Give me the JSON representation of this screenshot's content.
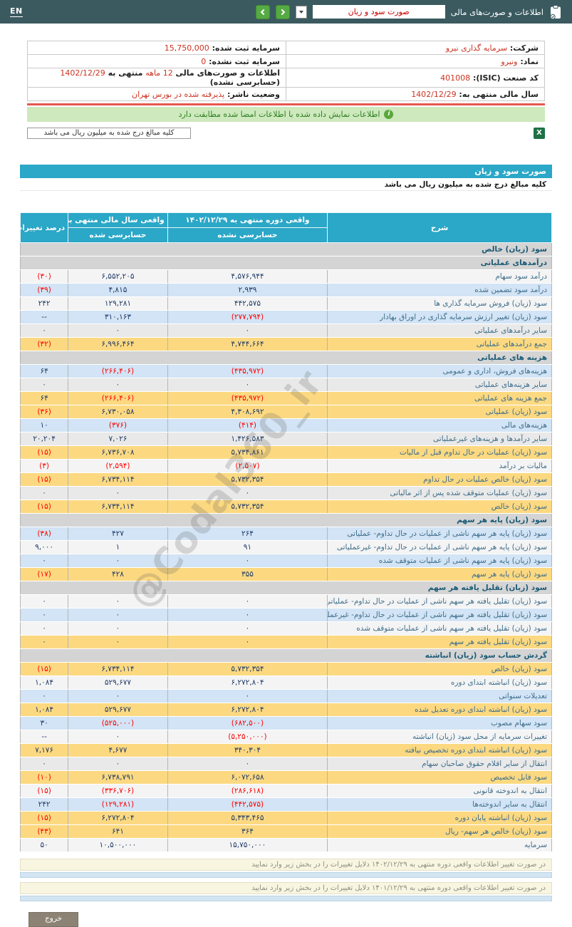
{
  "navbar": {
    "en_label": "EN",
    "section_label": "اطلاعات و صورت‌های مالی",
    "report_selected": "صورت سود و زیان"
  },
  "company_info": {
    "rows": [
      {
        "right": [
          {
            "t": "شرکت: ",
            "b": true
          },
          {
            "t": "سرمایه گذاری نیرو",
            "red": true
          }
        ],
        "left": [
          {
            "t": "سرمایه ثبت شده: ",
            "b": true
          },
          {
            "t": "15,750,000",
            "red": true
          }
        ]
      },
      {
        "right": [
          {
            "t": "نماد: ",
            "b": true
          },
          {
            "t": "ونیرو",
            "red": true
          }
        ],
        "left": [
          {
            "t": "سرمایه ثبت نشده: ",
            "b": true
          },
          {
            "t": "0",
            "red": true
          }
        ]
      },
      {
        "right": [
          {
            "t": "کد صنعت (ISIC): ",
            "b": true
          },
          {
            "t": "401008",
            "red": true
          }
        ],
        "left": [
          {
            "t": "اطلاعات و صورت‌های مالی ",
            "b": true
          },
          {
            "t": "12 ماهه",
            "red": true
          },
          {
            "t": " منتهی به ",
            "b": true
          },
          {
            "t": "1402/12/29",
            "red": true
          },
          {
            "t": " (حسابرسی نشده)",
            "b": true
          }
        ]
      },
      {
        "right": [
          {
            "t": "سال مالی منتهی به: ",
            "b": true
          },
          {
            "t": "1402/12/29",
            "red": true
          }
        ],
        "left": [
          {
            "t": "وضعیت ناشر: ",
            "b": true
          },
          {
            "t": "پذیرفته شده در بورس تهران",
            "red": true
          }
        ]
      }
    ]
  },
  "alert": {
    "text": "اطلاعات نمایش داده شده با اطلاعات امضا شده مطابقت دارد",
    "icon_glyph": "i"
  },
  "amounts_note_box": "کلیه مبالغ درج شده به میلیون ریال می باشد",
  "excel_icon_glyph": "X",
  "section_title": "صورت سود و زیان",
  "units_note": "کلیه مبالغ درج شده به میلیون ریال می باشد",
  "statement": {
    "headers": {
      "description": "شرح",
      "period_current": "واقعی دوره منتهی به ۱۴۰۲/۱۲/۲۹",
      "period_current_sub": "حسابرسی نشده",
      "period_prior": "واقعی سال مالی منتهی به ۱۴۰۱/۱۲/۲۹",
      "period_prior_sub": "حسابرسی شده",
      "change": "درصد تغییرات"
    },
    "rows": [
      {
        "type": "section",
        "label": "سود (زیان) خالص"
      },
      {
        "type": "section",
        "label": "درآمدهای عملیاتی"
      },
      {
        "type": "data",
        "style": "plain",
        "label": "درآمد سود سهام",
        "current": "۴,۵۷۶,۹۴۴",
        "prior": "۶,۵۵۲,۲۰۵",
        "change": "(۳۰)"
      },
      {
        "type": "data",
        "style": "blue",
        "label": "درآمد سود تضمین شده",
        "current": "۲,۹۳۹",
        "prior": "۴,۸۱۵",
        "change": "(۳۹)"
      },
      {
        "type": "data",
        "style": "plain",
        "label": "سود (زیان) فروش سرمایه گذاری ها",
        "current": "۴۴۲,۵۷۵",
        "prior": "۱۲۹,۲۸۱",
        "change": "۲۴۲"
      },
      {
        "type": "data",
        "style": "blue",
        "label": "سود (زیان) تغییر ارزش سرمایه گذاری در اوراق بهادار",
        "current": "(۲۷۷,۷۹۴)",
        "prior": "۳۱۰,۱۶۳",
        "change": "--"
      },
      {
        "type": "data",
        "style": "alt",
        "label": "سایر درآمدهای عملیاتی",
        "current": "۰",
        "prior": "۰",
        "change": "۰"
      },
      {
        "type": "data",
        "style": "yellow",
        "label": "جمع درآمدهای عملیاتی",
        "current": "۴,۷۴۴,۶۶۴",
        "prior": "۶,۹۹۶,۴۶۴",
        "change": "(۳۲)"
      },
      {
        "type": "section",
        "label": "هزینه های عملیاتی"
      },
      {
        "type": "data",
        "style": "blue",
        "label": "هزینه‌های فروش، اداری و عمومی",
        "current": "(۴۳۵,۹۷۲)",
        "prior": "(۲۶۶,۴۰۶)",
        "change": "۶۴"
      },
      {
        "type": "data",
        "style": "alt",
        "label": "سایر هزینه‌های عملیاتی",
        "current": "۰",
        "prior": "۰",
        "change": "۰"
      },
      {
        "type": "data",
        "style": "yellow",
        "label": "جمع هزینه های عملیاتی",
        "current": "(۴۳۵,۹۷۲)",
        "prior": "(۲۶۶,۴۰۶)",
        "change": "۶۴"
      },
      {
        "type": "data",
        "style": "yellow",
        "label": "سود (زیان) عملیاتی",
        "current": "۴,۳۰۸,۶۹۲",
        "prior": "۶,۷۳۰,۰۵۸",
        "change": "(۳۶)"
      },
      {
        "type": "data",
        "style": "blue",
        "label": "هزینه‌های مالی",
        "current": "(۴۱۴)",
        "prior": "(۳۷۶)",
        "change": "۱۰"
      },
      {
        "type": "data",
        "style": "alt",
        "label": "سایر درآمدها و هزینه‌های غیرعملیاتی",
        "current": "۱,۴۲۶,۵۸۳",
        "prior": "۷,۰۲۶",
        "change": "۲۰,۲۰۴"
      },
      {
        "type": "data",
        "style": "yellow",
        "label": "سود (زیان) عملیات در حال تداوم قبل از مالیات",
        "current": "۵,۷۳۴,۸۶۱",
        "prior": "۶,۷۳۶,۷۰۸",
        "change": "(۱۵)"
      },
      {
        "type": "data",
        "style": "plain",
        "label": "مالیات بر درآمد",
        "current": "(۲,۵۰۷)",
        "prior": "(۲,۵۹۴)",
        "change": "(۳)"
      },
      {
        "type": "data",
        "style": "yellow",
        "label": "سود (زیان) خالص عملیات در حال تداوم",
        "current": "۵,۷۳۲,۳۵۴",
        "prior": "۶,۷۳۴,۱۱۴",
        "change": "(۱۵)"
      },
      {
        "type": "data",
        "style": "alt",
        "label": "سود (زیان) عملیات متوقف شده پس از اثر مالیاتی",
        "current": "۰",
        "prior": "۰",
        "change": "۰"
      },
      {
        "type": "data",
        "style": "yellow",
        "label": "سود (زیان) خالص",
        "current": "۵,۷۳۲,۳۵۴",
        "prior": "۶,۷۳۴,۱۱۴",
        "change": "(۱۵)"
      },
      {
        "type": "section",
        "label": "سود (زیان) پایه هر سهم"
      },
      {
        "type": "data",
        "style": "blue",
        "label": "سود (زیان) پایه هر سهم ناشی از عملیات در حال تداوم- عملیاتی",
        "current": "۲۶۴",
        "prior": "۴۲۷",
        "change": "(۳۸)"
      },
      {
        "type": "data",
        "style": "plain",
        "label": "سود (زیان) پایه هر سهم ناشی از عملیات در حال تداوم- غیرعملیاتی",
        "current": "۹۱",
        "prior": "۱",
        "change": "۹,۰۰۰"
      },
      {
        "type": "data",
        "style": "blue",
        "label": "سود (زیان) پایه هر سهم ناشی از عملیات متوقف شده",
        "current": "۰",
        "prior": "۰",
        "change": "۰"
      },
      {
        "type": "data",
        "style": "yellow",
        "label": "سود (زیان) پایه هر سهم",
        "current": "۳۵۵",
        "prior": "۴۲۸",
        "change": "(۱۷)"
      },
      {
        "type": "section",
        "label": "سود (زیان) تقلیل یافته هر سهم"
      },
      {
        "type": "data",
        "style": "plain",
        "label": "سود (زیان) تقلیل یافته هر سهم ناشی از عملیات در حال تداوم- عملیاتی",
        "current": "۰",
        "prior": "۰",
        "change": "۰"
      },
      {
        "type": "data",
        "style": "blue",
        "label": "سود (زیان) تقلیل یافته هر سهم ناشی از عملیات در حال تداوم- غیرعملیاتی",
        "current": "۰",
        "prior": "۰",
        "change": "۰"
      },
      {
        "type": "data",
        "style": "plain",
        "label": "سود (زیان) تقلیل یافته هر سهم ناشی از عملیات متوقف شده",
        "current": "۰",
        "prior": "۰",
        "change": "۰"
      },
      {
        "type": "data",
        "style": "yellow",
        "label": "سود (زیان) تقلیل یافته هر سهم",
        "current": "۰",
        "prior": "۰",
        "change": "۰"
      },
      {
        "type": "section",
        "label": "گردش حساب سود (زیان) انباشته"
      },
      {
        "type": "data",
        "style": "yellow",
        "label": "سود (زیان) خالص",
        "current": "۵,۷۳۲,۳۵۴",
        "prior": "۶,۷۳۴,۱۱۴",
        "change": "(۱۵)"
      },
      {
        "type": "data",
        "style": "plain",
        "label": "سود (زیان) انباشته ابتدای دوره",
        "current": "۶,۲۷۲,۸۰۴",
        "prior": "۵۲۹,۶۷۷",
        "change": "۱,۰۸۴"
      },
      {
        "type": "data",
        "style": "blue",
        "label": "تعدیلات سنواتی",
        "current": "۰",
        "prior": "۰",
        "change": "۰"
      },
      {
        "type": "data",
        "style": "yellow",
        "label": "سود (زیان) انباشته ابتدای دوره تعدیل شده",
        "current": "۶,۲۷۲,۸۰۴",
        "prior": "۵۲۹,۶۷۷",
        "change": "۱,۰۸۴"
      },
      {
        "type": "data",
        "style": "blue",
        "label": "سود سهام مصوب",
        "current": "(۶۸۲,۵۰۰)",
        "prior": "(۵۲۵,۰۰۰)",
        "change": "۳۰"
      },
      {
        "type": "data",
        "style": "plain",
        "label": "تغییرات سرمایه از محل سود (زیان) انباشته",
        "current": "(۵,۲۵۰,۰۰۰)",
        "prior": "۰",
        "change": "--"
      },
      {
        "type": "data",
        "style": "yellow",
        "label": "سود (زیان) انباشته ابتدای دوره تخصیص نیافته",
        "current": "۳۴۰,۳۰۴",
        "prior": "۴,۶۷۷",
        "change": "۷,۱۷۶"
      },
      {
        "type": "data",
        "style": "alt",
        "label": "انتقال از سایر اقلام حقوق صاحبان سهام",
        "current": "۰",
        "prior": "۰",
        "change": "۰"
      },
      {
        "type": "data",
        "style": "yellow",
        "label": "سود قابل تخصیص",
        "current": "۶,۰۷۲,۶۵۸",
        "prior": "۶,۷۳۸,۷۹۱",
        "change": "(۱۰)"
      },
      {
        "type": "data",
        "style": "plain",
        "label": "انتقال به اندوخته قانونی",
        "current": "(۲۸۶,۶۱۸)",
        "prior": "(۳۳۶,۷۰۶)",
        "change": "(۱۵)"
      },
      {
        "type": "data",
        "style": "blue",
        "label": "انتقال به سایر اندوخته‌ها",
        "current": "(۴۴۲,۵۷۵)",
        "prior": "(۱۲۹,۲۸۱)",
        "change": "۲۴۲"
      },
      {
        "type": "data",
        "style": "yellow",
        "label": "سود (زیان) انباشته پایان دوره",
        "current": "۵,۳۴۳,۴۶۵",
        "prior": "۶,۲۷۲,۸۰۴",
        "change": "(۱۵)"
      },
      {
        "type": "data",
        "style": "yellow",
        "label": "سود (زیان) خالص هر سهم- ریال",
        "current": "۳۶۴",
        "prior": "۶۴۱",
        "change": "(۴۳)"
      },
      {
        "type": "data",
        "style": "plain",
        "label": "سرمایه",
        "current": "۱۵,۷۵۰,۰۰۰",
        "prior": "۱۰,۵۰۰,۰۰۰",
        "change": "۵۰"
      }
    ]
  },
  "watermark": "@Codal360_ir",
  "notes": [
    {
      "text": "در صورت تغییر اطلاعات واقعی دوره منتهی به ۱۴۰۲/۱۲/۲۹ دلایل تغییرات را در بخش زیر وارد نمایید"
    },
    {
      "text": "در صورت تغییر اطلاعات واقعی دوره منتهی به ۱۴۰۱/۱۲/۲۹ دلایل تغییرات را در بخش زیر وارد نمایید"
    }
  ],
  "exit_button": "خروج",
  "colors": {
    "navbar_bg": "#3a5a60",
    "header_teal": "#2ba7c7",
    "row_yellow": "#fcd981",
    "row_blue": "#d2e4f5",
    "negative_red": "#ff0000",
    "value_navy": "#1f3a67",
    "alert_green_bg": "#cde9bd",
    "alert_green_text": "#2f7d21",
    "divider_red": "#e8564e",
    "excel_green": "#1e7145",
    "exit_button_bg": "#8c8374"
  }
}
